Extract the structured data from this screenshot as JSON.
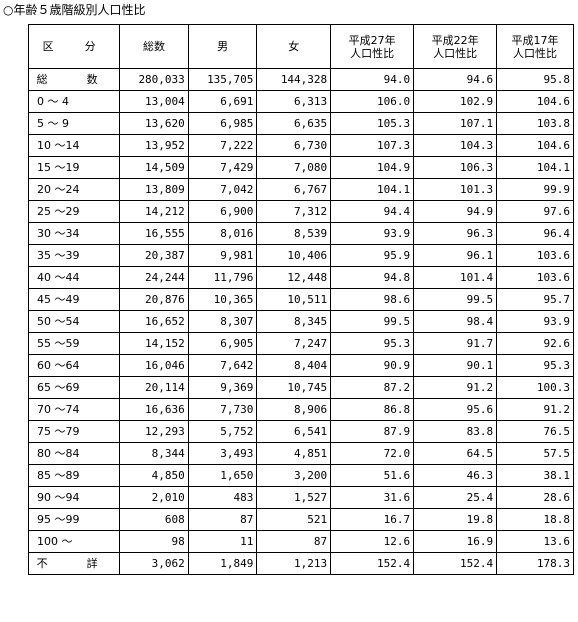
{
  "title": "○年齢５歳階級別人口性比",
  "headers": {
    "category": "区　分",
    "total": "総数",
    "male": "男",
    "female": "女",
    "ratio27_line1": "平成27年",
    "ratio27_line2": "人口性比",
    "ratio22_line1": "平成22年",
    "ratio22_line2": "人口性比",
    "ratio17_line1": "平成17年",
    "ratio17_line2": "人口性比"
  },
  "rows": [
    {
      "label": "総　数",
      "total": "280,033",
      "male": "135,705",
      "female": "144,328",
      "r27": "94.0",
      "r22": "94.6",
      "r17": "95.8"
    },
    {
      "label": "0 ～ 4",
      "total": "13,004",
      "male": "6,691",
      "female": "6,313",
      "r27": "106.0",
      "r22": "102.9",
      "r17": "104.6"
    },
    {
      "label": "5 ～ 9",
      "total": "13,620",
      "male": "6,985",
      "female": "6,635",
      "r27": "105.3",
      "r22": "107.1",
      "r17": "103.8"
    },
    {
      "label": "10 ～14",
      "total": "13,952",
      "male": "7,222",
      "female": "6,730",
      "r27": "107.3",
      "r22": "104.3",
      "r17": "104.6"
    },
    {
      "label": "15 ～19",
      "total": "14,509",
      "male": "7,429",
      "female": "7,080",
      "r27": "104.9",
      "r22": "106.3",
      "r17": "104.1"
    },
    {
      "label": "20 ～24",
      "total": "13,809",
      "male": "7,042",
      "female": "6,767",
      "r27": "104.1",
      "r22": "101.3",
      "r17": "99.9"
    },
    {
      "label": "25 ～29",
      "total": "14,212",
      "male": "6,900",
      "female": "7,312",
      "r27": "94.4",
      "r22": "94.9",
      "r17": "97.6"
    },
    {
      "label": "30 ～34",
      "total": "16,555",
      "male": "8,016",
      "female": "8,539",
      "r27": "93.9",
      "r22": "96.3",
      "r17": "96.4"
    },
    {
      "label": "35 ～39",
      "total": "20,387",
      "male": "9,981",
      "female": "10,406",
      "r27": "95.9",
      "r22": "96.1",
      "r17": "103.6"
    },
    {
      "label": "40 ～44",
      "total": "24,244",
      "male": "11,796",
      "female": "12,448",
      "r27": "94.8",
      "r22": "101.4",
      "r17": "103.6"
    },
    {
      "label": "45 ～49",
      "total": "20,876",
      "male": "10,365",
      "female": "10,511",
      "r27": "98.6",
      "r22": "99.5",
      "r17": "95.7"
    },
    {
      "label": "50 ～54",
      "total": "16,652",
      "male": "8,307",
      "female": "8,345",
      "r27": "99.5",
      "r22": "98.4",
      "r17": "93.9"
    },
    {
      "label": "55 ～59",
      "total": "14,152",
      "male": "6,905",
      "female": "7,247",
      "r27": "95.3",
      "r22": "91.7",
      "r17": "92.6"
    },
    {
      "label": "60 ～64",
      "total": "16,046",
      "male": "7,642",
      "female": "8,404",
      "r27": "90.9",
      "r22": "90.1",
      "r17": "95.3"
    },
    {
      "label": "65 ～69",
      "total": "20,114",
      "male": "9,369",
      "female": "10,745",
      "r27": "87.2",
      "r22": "91.2",
      "r17": "100.3"
    },
    {
      "label": "70 ～74",
      "total": "16,636",
      "male": "7,730",
      "female": "8,906",
      "r27": "86.8",
      "r22": "95.6",
      "r17": "91.2"
    },
    {
      "label": "75 ～79",
      "total": "12,293",
      "male": "5,752",
      "female": "6,541",
      "r27": "87.9",
      "r22": "83.8",
      "r17": "76.5"
    },
    {
      "label": "80 ～84",
      "total": "8,344",
      "male": "3,493",
      "female": "4,851",
      "r27": "72.0",
      "r22": "64.5",
      "r17": "57.5"
    },
    {
      "label": "85 ～89",
      "total": "4,850",
      "male": "1,650",
      "female": "3,200",
      "r27": "51.6",
      "r22": "46.3",
      "r17": "38.1"
    },
    {
      "label": "90 ～94",
      "total": "2,010",
      "male": "483",
      "female": "1,527",
      "r27": "31.6",
      "r22": "25.4",
      "r17": "28.6"
    },
    {
      "label": "95 ～99",
      "total": "608",
      "male": "87",
      "female": "521",
      "r27": "16.7",
      "r22": "19.8",
      "r17": "18.8"
    },
    {
      "label": "100 ～",
      "total": "98",
      "male": "11",
      "female": "87",
      "r27": "12.6",
      "r22": "16.9",
      "r17": "13.6"
    },
    {
      "label": "不　詳",
      "total": "3,062",
      "male": "1,849",
      "female": "1,213",
      "r27": "152.4",
      "r22": "152.4",
      "r17": "178.3"
    }
  ]
}
